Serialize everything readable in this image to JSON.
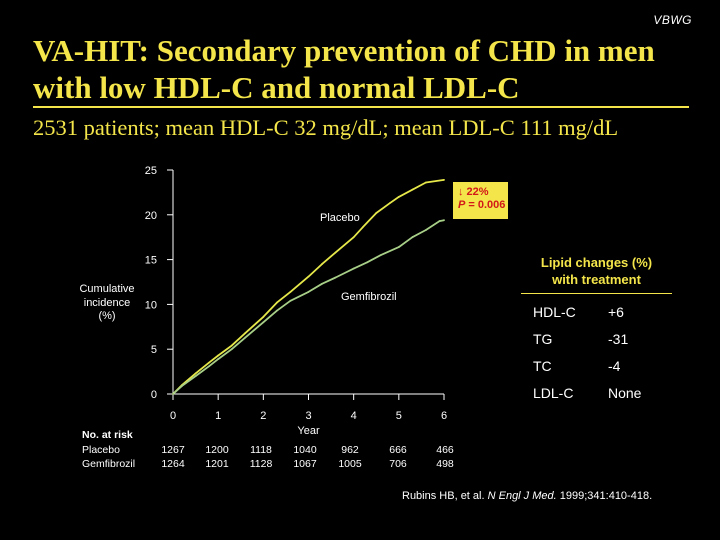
{
  "logo": "VBWG",
  "title": "VA-HIT: Secondary prevention of CHD in men with low HDL-C and normal LDL-C",
  "subtitle": "2531 patients; mean HDL-C 32 mg/dL; mean LDL-C 111 mg/dL",
  "colors": {
    "accent": "#f3e54a",
    "placebo": "#e6e84a",
    "gemfibrozil": "#a8cf88",
    "annotation_text": "#d21818"
  },
  "chart_data": {
    "type": "line",
    "title": "",
    "xlabel": "Year",
    "ylabel": "Cumulative incidence (%)",
    "ylabel_lines": [
      "Cumulative",
      "incidence",
      "(%)"
    ],
    "xlim": [
      0,
      6
    ],
    "ylim": [
      0,
      25
    ],
    "xticks": [
      0,
      1,
      2,
      3,
      4,
      5,
      6
    ],
    "yticks": [
      0,
      5,
      10,
      15,
      20,
      25
    ],
    "grid": false,
    "series": [
      {
        "name": "Placebo",
        "x": [
          0,
          0.2,
          0.5,
          0.8,
          1.0,
          1.3,
          1.6,
          2.0,
          2.3,
          2.6,
          3.0,
          3.3,
          3.6,
          4.0,
          4.2,
          4.5,
          4.8,
          5.0,
          5.3,
          5.6,
          6.0
        ],
        "y": [
          0,
          1.0,
          2.3,
          3.5,
          4.3,
          5.4,
          6.8,
          8.6,
          10.2,
          11.4,
          13.1,
          14.5,
          15.8,
          17.5,
          18.6,
          20.2,
          21.3,
          22.0,
          22.8,
          23.6,
          23.9
        ]
      },
      {
        "name": "Gemfibrozil",
        "x": [
          0,
          0.2,
          0.5,
          0.8,
          1.0,
          1.3,
          1.6,
          2.0,
          2.3,
          2.6,
          3.0,
          3.3,
          3.6,
          4.0,
          4.3,
          4.6,
          5.0,
          5.3,
          5.6,
          5.9,
          6.0
        ],
        "y": [
          0,
          0.9,
          2.0,
          3.1,
          3.9,
          5.0,
          6.3,
          8.0,
          9.3,
          10.4,
          11.4,
          12.3,
          13.0,
          14.0,
          14.7,
          15.5,
          16.4,
          17.5,
          18.3,
          19.3,
          19.4
        ]
      }
    ],
    "annotations": {
      "reduction": "↓ 22%",
      "p_label": "P",
      "p_value": "= 0.006"
    }
  },
  "lipid_table": {
    "heading_line1": "Lipid changes (%)",
    "heading_line2": "with treatment",
    "rows": [
      {
        "label": "HDL-C",
        "value": "+6"
      },
      {
        "label": "TG",
        "value": "-31"
      },
      {
        "label": "TC",
        "value": "-4"
      },
      {
        "label": "LDL-C",
        "value": "None"
      }
    ]
  },
  "at_risk": {
    "heading": "No. at risk",
    "rows": [
      {
        "label": "Placebo",
        "values": [
          "1267",
          "1200",
          "1118",
          "1040",
          "962",
          "666",
          "466"
        ]
      },
      {
        "label": "Gemfibrozil",
        "values": [
          "1264",
          "1201",
          "1128",
          "1067",
          "1005",
          "706",
          "498"
        ]
      }
    ]
  },
  "citation": {
    "authors": "Rubins HB, et al.",
    "journal": "N Engl J Med.",
    "details": "1999;341:410-418."
  }
}
